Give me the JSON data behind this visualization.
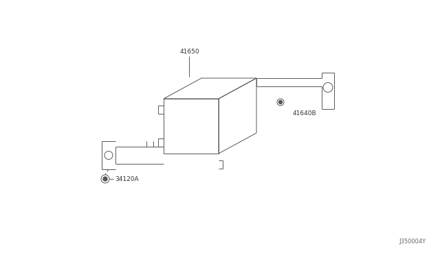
{
  "background_color": "#ffffff",
  "line_color": "#555555",
  "text_color": "#333333",
  "fig_width": 6.4,
  "fig_height": 3.72,
  "dpi": 100,
  "watermark": "J350004Y",
  "label_fontsize": 6.5
}
